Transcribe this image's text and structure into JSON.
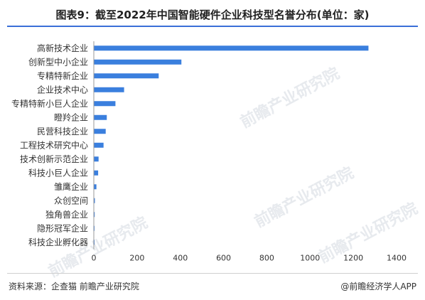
{
  "title": "图表9：截至2022年中国智能硬件企业科技型名誉分布(单位：家)",
  "source": "资料来源：企查猫 前瞻产业研究院",
  "brand": "@前瞻经济学人APP",
  "watermark": "前瞻产业研究院",
  "colors": {
    "bar": "#3a7fde",
    "accent": "#3a6fd8",
    "axis": "#999999"
  },
  "chart_data": {
    "type": "bar",
    "orientation": "horizontal",
    "categories": [
      "高新技术企业",
      "创新型中小企业",
      "专精特新企业",
      "企业技术中心",
      "专精特新小巨人企业",
      "瞪羚企业",
      "民营科技企业",
      "工程技术研究中心",
      "技术创新示范企业",
      "科技小巨人企业",
      "雏鹰企业",
      "众创空间",
      "独角兽企业",
      "隐形冠军企业",
      "科技企业孵化器"
    ],
    "values": [
      1270,
      405,
      300,
      140,
      100,
      60,
      55,
      45,
      22,
      20,
      12,
      5,
      4,
      1,
      1
    ],
    "xlim": [
      0,
      1400
    ],
    "xticks": [
      0,
      200,
      400,
      600,
      800,
      1000,
      1200,
      1400
    ],
    "grid": false
  }
}
